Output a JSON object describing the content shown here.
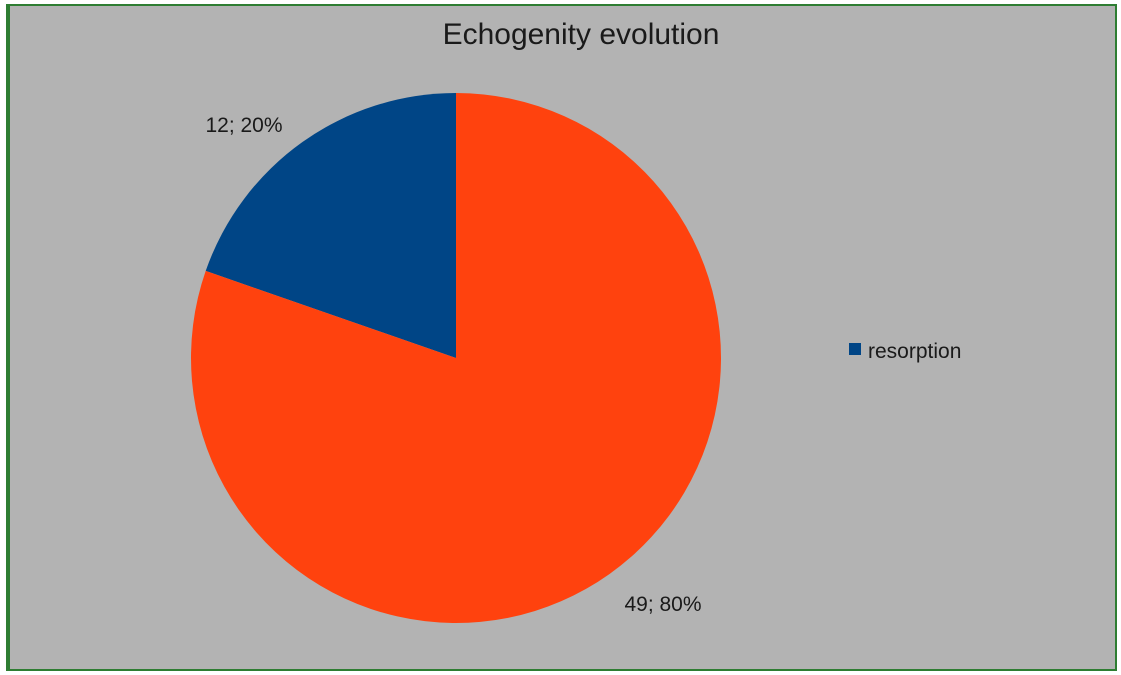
{
  "chart_data": {
    "type": "pie",
    "title": "Echogenity evolution",
    "slices": [
      {
        "label": "resorption",
        "value": 12,
        "percent": 20,
        "data_label": "12; 20%",
        "color": "#004586"
      },
      {
        "label": "",
        "value": 49,
        "percent": 80,
        "data_label": "49; 80%",
        "color": "#ff420e"
      }
    ],
    "legend": {
      "position": "right",
      "entries": [
        {
          "label": "resorption",
          "color": "#004586"
        }
      ]
    },
    "background": "#b3b3b3",
    "border_color": "#2e7d32"
  }
}
